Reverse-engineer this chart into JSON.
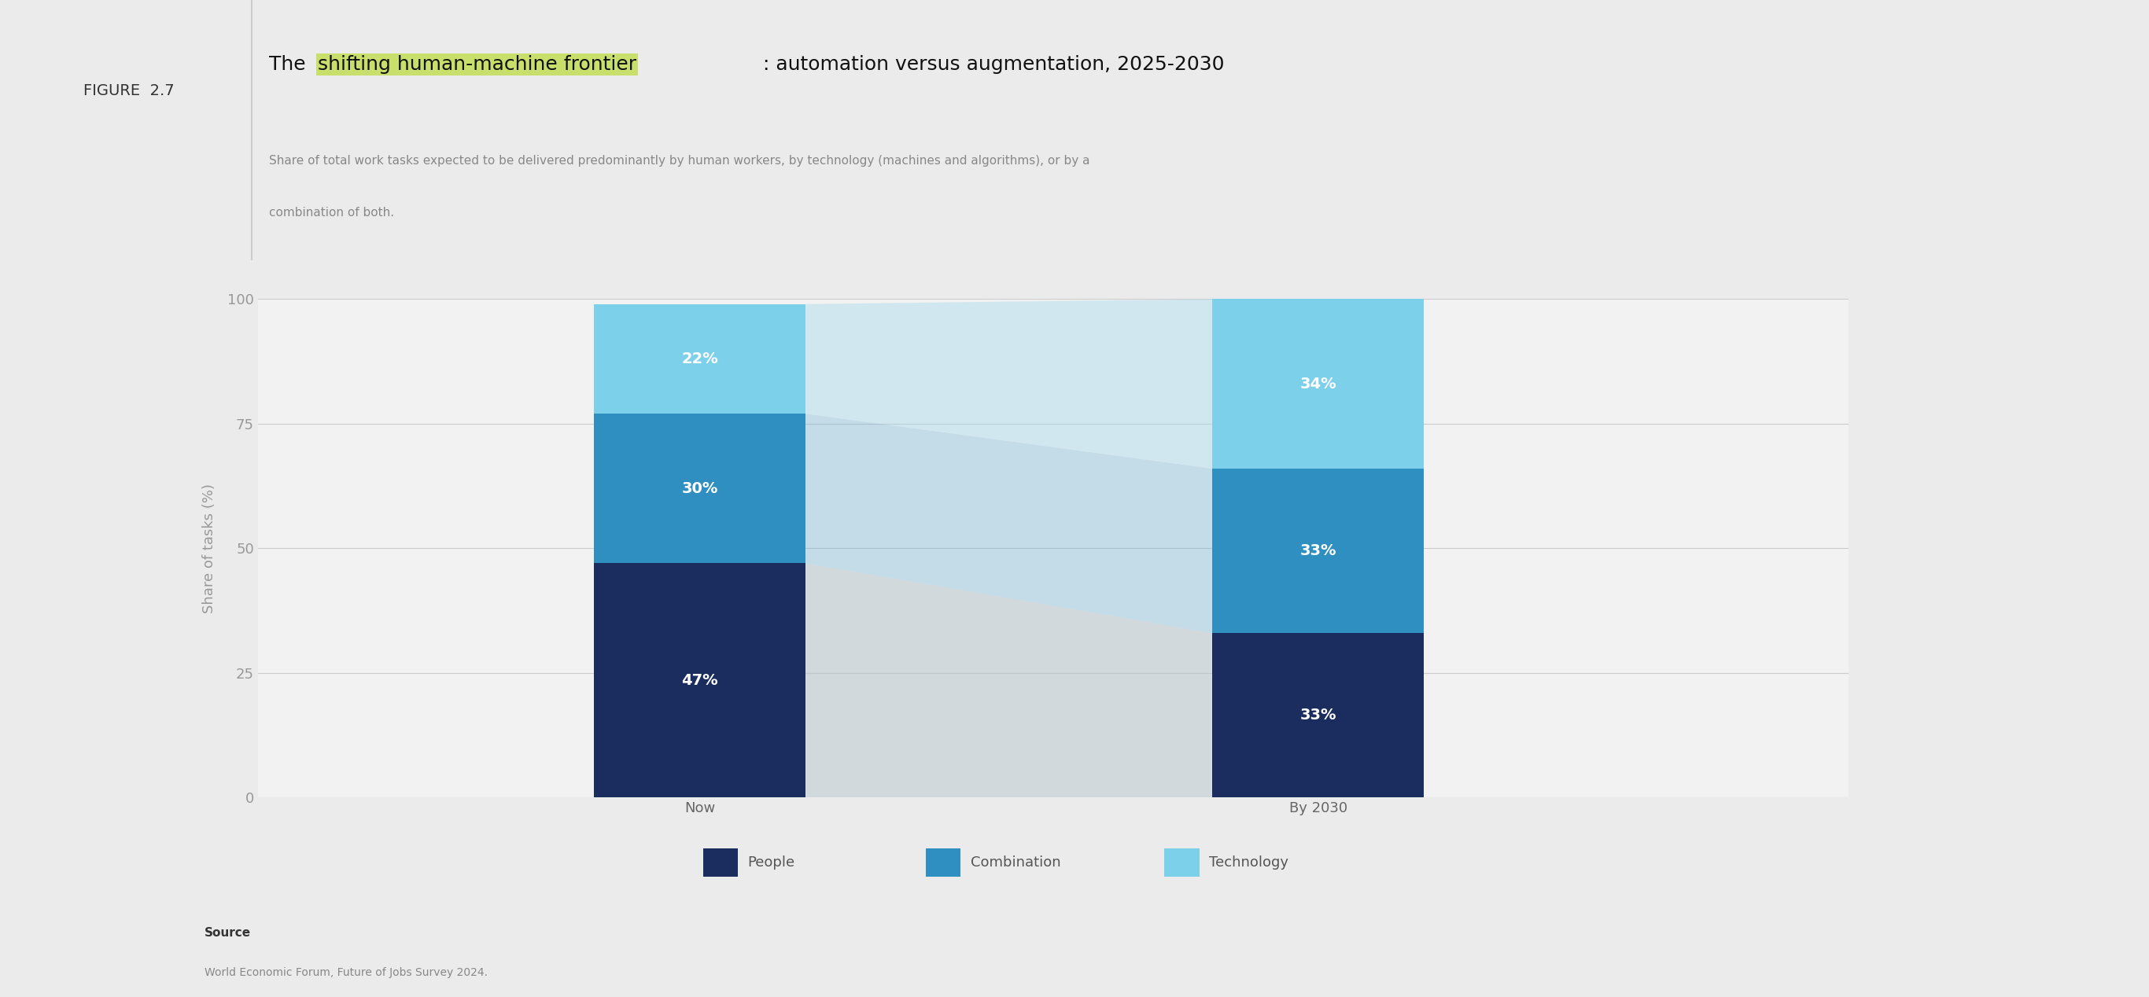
{
  "figure_label": "FIGURE  2.7",
  "title_plain": ": automation versus augmentation, 2025-2030",
  "title_highlight": "shifting human-machine frontier",
  "title_prefix": "The ",
  "subtitle_line1": "Share of total work tasks expected to be delivered predominantly by human workers, by technology (machines and algorithms), or by a",
  "subtitle_line2": "combination of both.",
  "ylabel": "Share of tasks (%)",
  "categories": [
    "Now",
    "By 2030"
  ],
  "people": [
    47,
    33
  ],
  "combination": [
    30,
    33
  ],
  "technology": [
    22,
    34
  ],
  "color_people": "#1b2d5e",
  "color_combination": "#2e8fc0",
  "color_technology": "#7dd0ea",
  "bar_width": 0.12,
  "bar_positions": [
    0.3,
    0.65
  ],
  "xlim": [
    0.05,
    0.95
  ],
  "ylim": [
    0,
    100
  ],
  "yticks": [
    0,
    25,
    50,
    75,
    100
  ],
  "background_color": "#ebebeb",
  "panel_color": "#ffffff",
  "chart_bg": "#f2f2f2",
  "grid_color": "#cccccc",
  "highlight_color": "#c8e06b",
  "source_label": "Source",
  "source_text": "World Economic Forum, Future of Jobs Survey 2024.",
  "legend_labels": [
    "People",
    "Combination",
    "Technology"
  ],
  "title_fontsize": 18,
  "subtitle_fontsize": 11,
  "figure_label_fontsize": 14,
  "axis_fontsize": 13,
  "tick_fontsize": 13,
  "legend_fontsize": 13,
  "bar_label_fontsize": 14
}
